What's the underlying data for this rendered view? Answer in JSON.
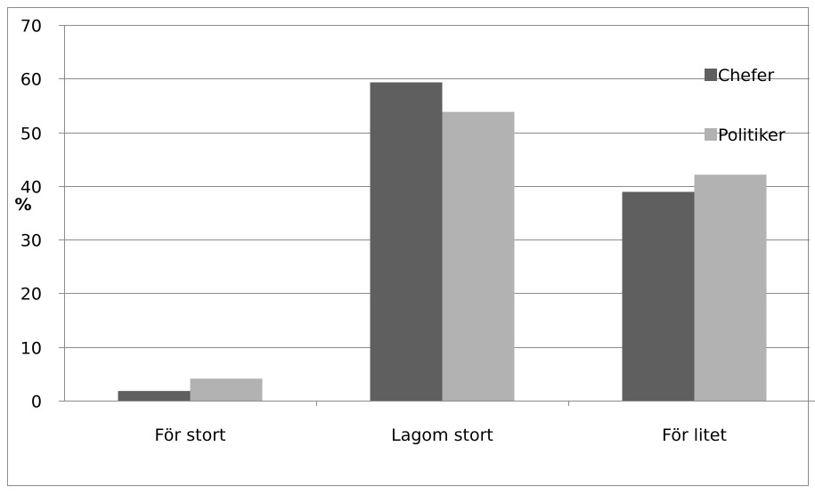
{
  "chart_data": {
    "type": "bar",
    "title": "",
    "xlabel": "",
    "ylabel": "%",
    "categories": [
      "För stort",
      "Lagom stort",
      "För litet"
    ],
    "series": [
      {
        "name": "Chefer",
        "values": [
          1.8,
          59.3,
          38.9
        ],
        "color": "#5f5f5f"
      },
      {
        "name": "Politiker",
        "values": [
          4.1,
          53.8,
          42.1
        ],
        "color": "#b2b2b2"
      }
    ],
    "ylim": [
      0,
      70
    ],
    "yticks": [
      "0",
      "10",
      "20",
      "30",
      "40",
      "50",
      "60",
      "70"
    ],
    "grid": true,
    "legend_position": "right"
  }
}
